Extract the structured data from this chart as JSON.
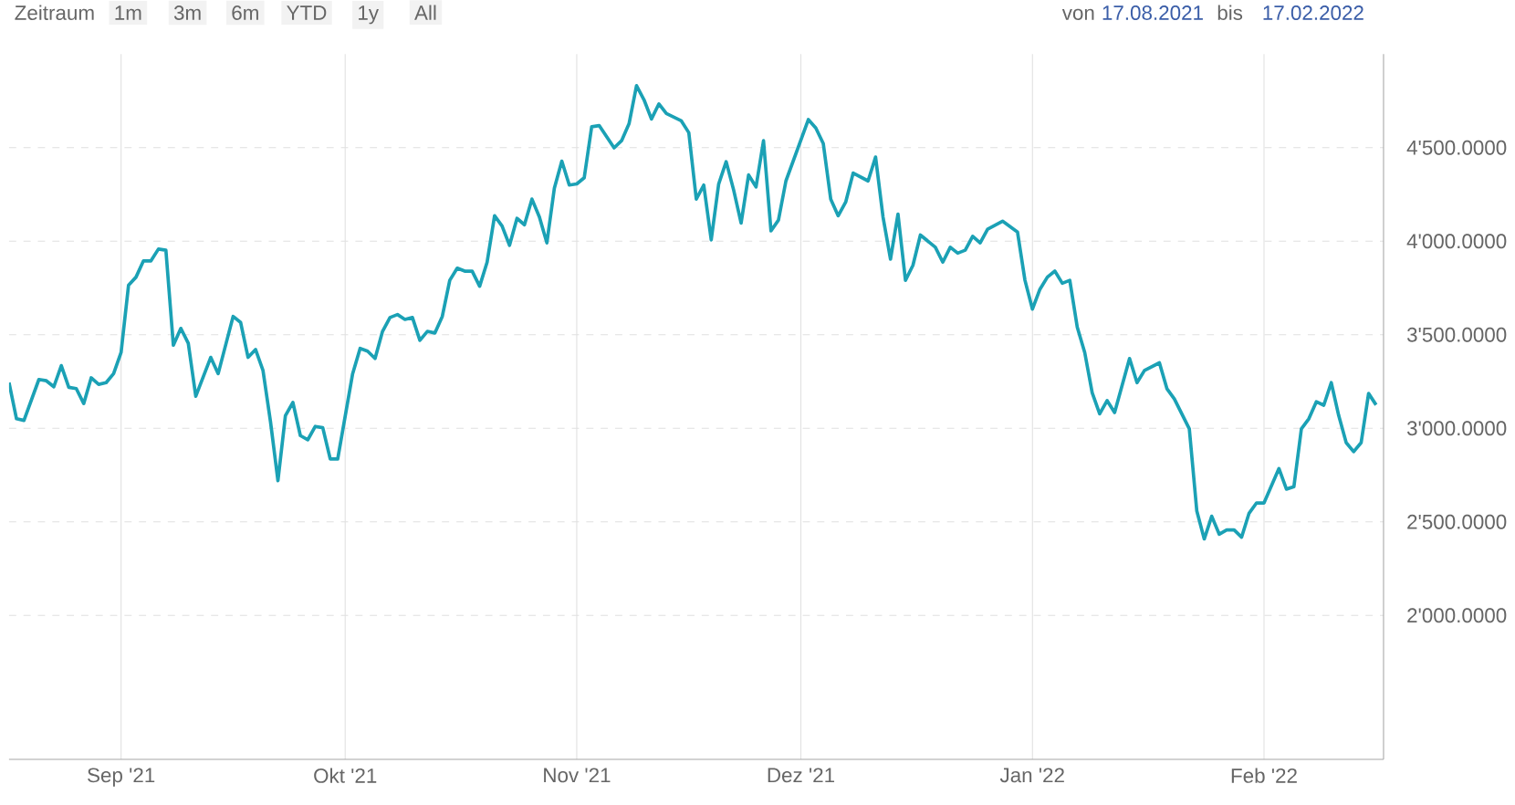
{
  "chart_data": {
    "type": "line",
    "annotations": [
      "Zeitraum",
      "1m",
      "3m",
      "6m",
      "YTD",
      "1y",
      "All",
      "von",
      "17.08.2021",
      "bis",
      "17.02.2022"
    ],
    "x": [
      "2021-08-17",
      "2021-08-18",
      "2021-08-19",
      "2021-08-21",
      "2021-08-22",
      "2021-08-23",
      "2021-08-24",
      "2021-08-25",
      "2021-08-26",
      "2021-08-27",
      "2021-08-28",
      "2021-08-29",
      "2021-08-30",
      "2021-08-31",
      "2021-09-01",
      "2021-09-02",
      "2021-09-03",
      "2021-09-04",
      "2021-09-05",
      "2021-09-06",
      "2021-09-07",
      "2021-09-08",
      "2021-09-09",
      "2021-09-10",
      "2021-09-11",
      "2021-09-13",
      "2021-09-14",
      "2021-09-16",
      "2021-09-17",
      "2021-09-18",
      "2021-09-19",
      "2021-09-20",
      "2021-09-21",
      "2021-09-22",
      "2021-09-23",
      "2021-09-24",
      "2021-09-25",
      "2021-09-26",
      "2021-09-27",
      "2021-09-28",
      "2021-09-29",
      "2021-09-30",
      "2021-10-02",
      "2021-10-03",
      "2021-10-04",
      "2021-10-05",
      "2021-10-06",
      "2021-10-07",
      "2021-10-08",
      "2021-10-09",
      "2021-10-10",
      "2021-10-11",
      "2021-10-12",
      "2021-10-13",
      "2021-10-14",
      "2021-10-15",
      "2021-10-16",
      "2021-10-17",
      "2021-10-18",
      "2021-10-19",
      "2021-10-20",
      "2021-10-21",
      "2021-10-22",
      "2021-10-23",
      "2021-10-24",
      "2021-10-25",
      "2021-10-26",
      "2021-10-27",
      "2021-10-28",
      "2021-10-29",
      "2021-10-30",
      "2021-10-31",
      "2021-11-01",
      "2021-11-02",
      "2021-11-03",
      "2021-11-04",
      "2021-11-06",
      "2021-11-07",
      "2021-11-08",
      "2021-11-09",
      "2021-11-10",
      "2021-11-11",
      "2021-11-12",
      "2021-11-13",
      "2021-11-15",
      "2021-11-16",
      "2021-11-17",
      "2021-11-18",
      "2021-11-19",
      "2021-11-20",
      "2021-11-21",
      "2021-11-22",
      "2021-11-23",
      "2021-11-24",
      "2021-11-25",
      "2021-11-26",
      "2021-11-27",
      "2021-11-28",
      "2021-11-29",
      "2021-12-02",
      "2021-12-03",
      "2021-12-04",
      "2021-12-05",
      "2021-12-06",
      "2021-12-07",
      "2021-12-08",
      "2021-12-10",
      "2021-12-11",
      "2021-12-12",
      "2021-12-13",
      "2021-12-14",
      "2021-12-15",
      "2021-12-16",
      "2021-12-17",
      "2021-12-19",
      "2021-12-20",
      "2021-12-21",
      "2021-12-22",
      "2021-12-23",
      "2021-12-24",
      "2021-12-25",
      "2021-12-26",
      "2021-12-28",
      "2021-12-30",
      "2021-12-31",
      "2022-01-01",
      "2022-01-02",
      "2022-01-03",
      "2022-01-04",
      "2022-01-05",
      "2022-01-06",
      "2022-01-07",
      "2022-01-08",
      "2022-01-09",
      "2022-01-10",
      "2022-01-11",
      "2022-01-12",
      "2022-01-14",
      "2022-01-15",
      "2022-01-16",
      "2022-01-18",
      "2022-01-19",
      "2022-01-20",
      "2022-01-22",
      "2022-01-23",
      "2022-01-24",
      "2022-01-25",
      "2022-01-26",
      "2022-01-27",
      "2022-01-28",
      "2022-01-29",
      "2022-01-30",
      "2022-01-31",
      "2022-02-01",
      "2022-02-03",
      "2022-02-04",
      "2022-02-05",
      "2022-02-06",
      "2022-02-07",
      "2022-02-08",
      "2022-02-09",
      "2022-02-10",
      "2022-02-11",
      "2022-02-12",
      "2022-02-13",
      "2022-02-14",
      "2022-02-15",
      "2022-02-16"
    ],
    "series": [
      {
        "color": "#1ba1b5",
        "values": [
          3244,
          3051,
          3042,
          3261,
          3254,
          3222,
          3335,
          3219,
          3212,
          3132,
          3270,
          3235,
          3244,
          3292,
          3405,
          3765,
          3808,
          3895,
          3895,
          3958,
          3952,
          3444,
          3534,
          3454,
          3171,
          3379,
          3292,
          3598,
          3566,
          3379,
          3421,
          3309,
          3036,
          2720,
          3068,
          3138,
          2961,
          2939,
          3010,
          3003,
          2836,
          2836,
          3292,
          3427,
          3412,
          3373,
          3518,
          3592,
          3608,
          3582,
          3592,
          3470,
          3518,
          3509,
          3598,
          3791,
          3856,
          3840,
          3840,
          3759,
          3888,
          4136,
          4081,
          3978,
          4122,
          4088,
          4225,
          4129,
          3991,
          4283,
          4428,
          4300,
          4306,
          4339,
          4612,
          4618,
          4499,
          4537,
          4628,
          4831,
          4756,
          4653,
          4734,
          4682,
          4643,
          4580,
          4225,
          4300,
          4007,
          4306,
          4425,
          4274,
          4097,
          4354,
          4290,
          4537,
          4055,
          4113,
          4322,
          4650,
          4605,
          4522,
          4225,
          4136,
          4209,
          4364,
          4322,
          4450,
          4129,
          3904,
          4145,
          3791,
          3871,
          4033,
          3968,
          3888,
          3968,
          3936,
          3952,
          4026,
          3991,
          4064,
          4107,
          4049,
          3791,
          3637,
          3743,
          3808,
          3840,
          3775,
          3791,
          3540,
          3405,
          3190,
          3077,
          3148,
          3084,
          3373,
          3244,
          3309,
          3350,
          3212,
          3157,
          2997,
          2559,
          2408,
          2530,
          2434,
          2457,
          2457,
          2418,
          2546,
          2601,
          2601,
          2785,
          2675,
          2688,
          2997,
          3051,
          3142,
          3123,
          3244,
          3068,
          2923,
          2875,
          2923,
          3186,
          3125
        ]
      }
    ],
    "xlim": [
      "2021-08-17",
      "2022-02-17"
    ],
    "xticks": [
      {
        "value": "2021-09-01",
        "label": "Sep '21"
      },
      {
        "value": "2021-10-01",
        "label": "Okt '21"
      },
      {
        "value": "2021-11-01",
        "label": "Nov '21"
      },
      {
        "value": "2021-12-01",
        "label": "Dez '21"
      },
      {
        "value": "2022-01-01",
        "label": "Jan '22"
      },
      {
        "value": "2022-02-01",
        "label": "Feb '22"
      }
    ],
    "ylim": [
      1230,
      5000
    ],
    "yticks": [
      {
        "value": 2000,
        "label": "2'000.0000"
      },
      {
        "value": 2500,
        "label": "2'500.0000"
      },
      {
        "value": 3000,
        "label": "3'000.0000"
      },
      {
        "value": 3500,
        "label": "3'500.0000"
      },
      {
        "value": 4000,
        "label": "4'000.0000"
      },
      {
        "value": 4500,
        "label": "4'500.0000"
      }
    ],
    "grid": true
  }
}
